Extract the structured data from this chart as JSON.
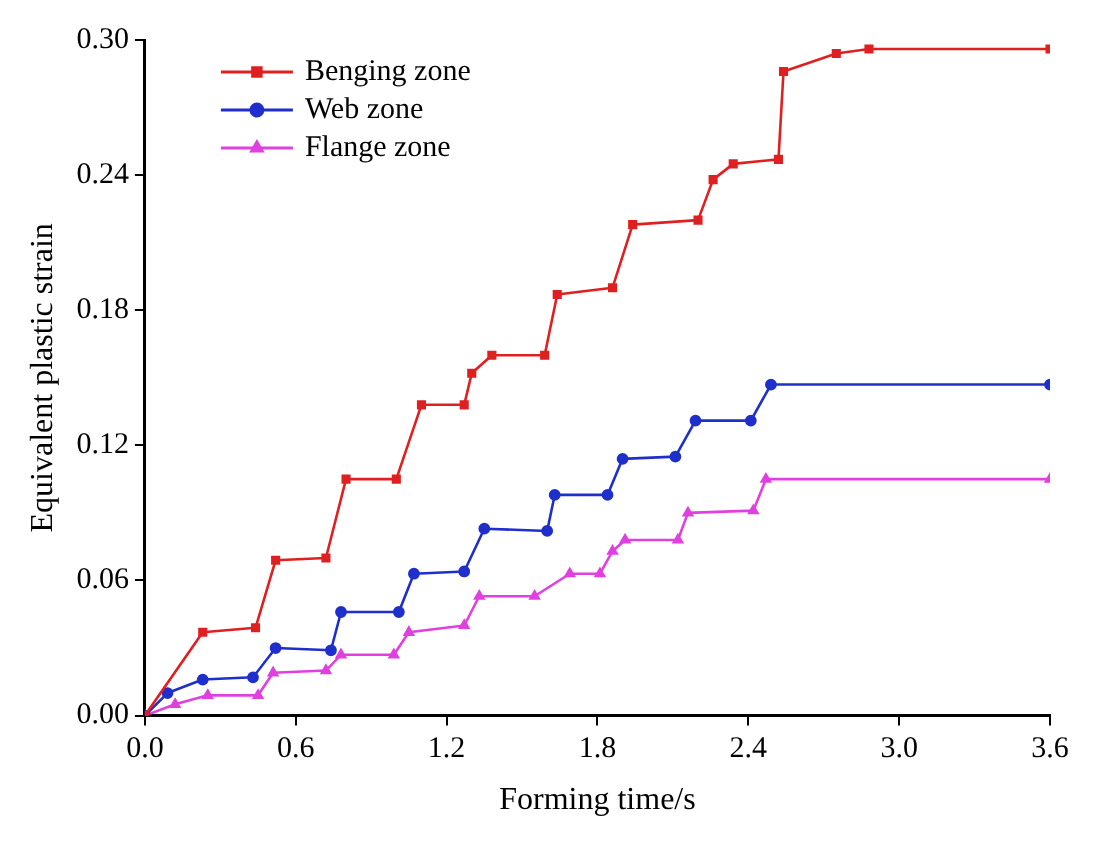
{
  "chart_data": {
    "type": "line",
    "xlabel": "Forming time/s",
    "ylabel": "Equivalent plastic strain",
    "xlim": [
      0,
      3.6
    ],
    "xticks": [
      {
        "value": 0,
        "label": "0.0"
      },
      0.6,
      1.2,
      1.8,
      2.4,
      {
        "value": 3,
        "label": "3.0"
      },
      3.6
    ],
    "ylim": [
      0,
      0.3
    ],
    "yticks": [
      {
        "value": 0,
        "label": "0.00"
      },
      0.06,
      0.12,
      0.18,
      0.24,
      {
        "value": 0.3,
        "label": "0.30"
      }
    ],
    "grid": false,
    "legend": "top left",
    "line_style": "solid",
    "series": [
      {
        "name": "Benging zone",
        "color": "#e02020",
        "marker": "square",
        "x": [
          0,
          0.23,
          0.44,
          0.52,
          0.72,
          0.8,
          1.0,
          1.1,
          1.27,
          1.3,
          1.38,
          1.59,
          1.64,
          1.86,
          1.94,
          2.2,
          2.26,
          2.34,
          2.52,
          2.54,
          2.75,
          2.88,
          3.6
        ],
        "values": [
          0,
          0.037,
          0.039,
          0.069,
          0.07,
          0.105,
          0.105,
          0.138,
          0.138,
          0.152,
          0.16,
          0.16,
          0.187,
          0.19,
          0.218,
          0.22,
          0.238,
          0.245,
          0.247,
          0.286,
          0.294,
          0.296,
          0.296
        ]
      },
      {
        "name": "Web zone",
        "color": "#1f2fcc",
        "marker": "circle",
        "x": [
          0,
          0.09,
          0.23,
          0.43,
          0.52,
          0.74,
          0.78,
          1.01,
          1.07,
          1.27,
          1.35,
          1.6,
          1.63,
          1.84,
          1.9,
          2.11,
          2.19,
          2.41,
          2.49,
          3.6
        ],
        "values": [
          0,
          0.01,
          0.016,
          0.017,
          0.03,
          0.029,
          0.046,
          0.046,
          0.063,
          0.064,
          0.083,
          0.082,
          0.098,
          0.098,
          0.114,
          0.115,
          0.131,
          0.131,
          0.147,
          0.147
        ]
      },
      {
        "name": "Flange zone",
        "color": "#e040e0",
        "marker": "triangle",
        "x": [
          0,
          0.12,
          0.25,
          0.45,
          0.51,
          0.72,
          0.78,
          0.99,
          1.05,
          1.27,
          1.33,
          1.55,
          1.69,
          1.81,
          1.86,
          1.91,
          2.12,
          2.16,
          2.42,
          2.47,
          3.6
        ],
        "values": [
          0,
          0.005,
          0.009,
          0.009,
          0.019,
          0.02,
          0.027,
          0.027,
          0.037,
          0.04,
          0.053,
          0.053,
          0.063,
          0.063,
          0.073,
          0.078,
          0.078,
          0.09,
          0.091,
          0.105,
          0.105
        ]
      }
    ]
  }
}
